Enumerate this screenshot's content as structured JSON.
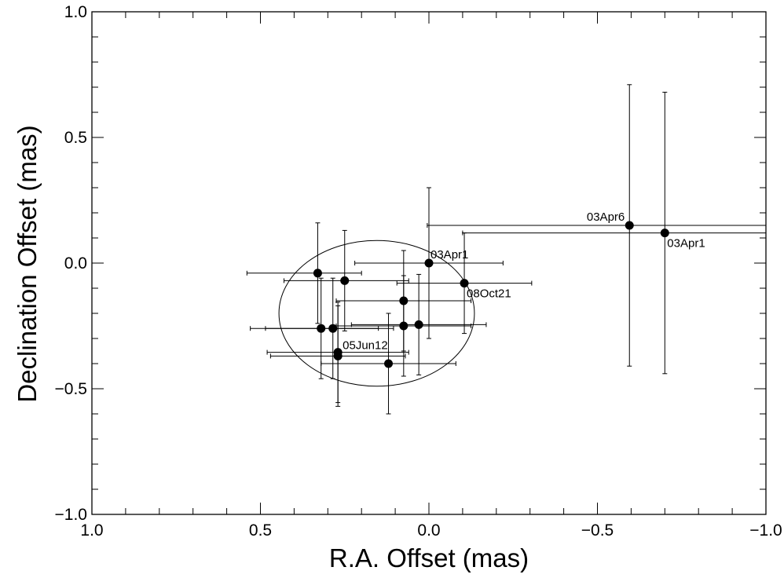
{
  "chart_data": {
    "type": "scatter",
    "title": "",
    "xlabel": "R.A. Offset (mas)",
    "ylabel": "Declination Offset (mas)",
    "xlim": [
      1.0,
      -1.0
    ],
    "ylim": [
      -1.0,
      1.0
    ],
    "x_reversed": true,
    "grid": false,
    "legend": "none",
    "x_tick_labels": [
      "1.0",
      "0.5",
      "0.0",
      "−0.5",
      "−1.0"
    ],
    "x_tick_values": [
      1.0,
      0.5,
      0.0,
      -0.5,
      -1.0
    ],
    "y_tick_labels": [
      "−1.0",
      "−0.5",
      "0.0",
      "0.5",
      "1.0"
    ],
    "y_tick_values": [
      -1.0,
      -0.5,
      0.0,
      0.5,
      1.0
    ],
    "points": [
      {
        "x": 0.33,
        "y": -0.04,
        "xerr_lo": 0.21,
        "xerr_hi": 0.13,
        "yerr": 0.2,
        "label": ""
      },
      {
        "x": 0.25,
        "y": -0.07,
        "xerr_lo": 0.18,
        "xerr_hi": 0.19,
        "yerr": 0.2,
        "label": ""
      },
      {
        "x": 0.32,
        "y": -0.26,
        "xerr_lo": 0.21,
        "xerr_hi": 0.17,
        "yerr": 0.2,
        "label": ""
      },
      {
        "x": 0.285,
        "y": -0.26,
        "xerr_lo": 0.2,
        "xerr_hi": 0.18,
        "yerr": 0.2,
        "label": ""
      },
      {
        "x": 0.27,
        "y": -0.355,
        "xerr_lo": 0.21,
        "xerr_hi": 0.21,
        "yerr": 0.2,
        "label": "05Jun12"
      },
      {
        "x": 0.27,
        "y": -0.37,
        "xerr_lo": 0.2,
        "xerr_hi": 0.2,
        "yerr": 0.2,
        "label": ""
      },
      {
        "x": 0.12,
        "y": -0.4,
        "xerr_lo": 0.2,
        "xerr_hi": 0.2,
        "yerr": 0.2,
        "label": ""
      },
      {
        "x": 0.075,
        "y": -0.15,
        "xerr_lo": 0.2,
        "xerr_hi": 0.2,
        "yerr": 0.2,
        "label": ""
      },
      {
        "x": 0.075,
        "y": -0.25,
        "xerr_lo": 0.2,
        "xerr_hi": 0.2,
        "yerr": 0.2,
        "label": ""
      },
      {
        "x": 0.03,
        "y": -0.245,
        "xerr_lo": 0.2,
        "xerr_hi": 0.2,
        "yerr": 0.2,
        "label": ""
      },
      {
        "x": 0.0,
        "y": 0.0,
        "xerr_lo": 0.22,
        "xerr_hi": 0.22,
        "yerr": 0.3,
        "label": "03Apr1"
      },
      {
        "x": -0.105,
        "y": -0.08,
        "xerr_lo": 0.2,
        "xerr_hi": 0.2,
        "yerr": 0.2,
        "label": "08Oct21"
      },
      {
        "x": -0.595,
        "y": 0.15,
        "xerr_lo": 0.6,
        "xerr_hi": 0.6,
        "yerr": 0.56,
        "label": "03Apr6"
      },
      {
        "x": -0.7,
        "y": 0.12,
        "xerr_lo": 0.6,
        "xerr_hi": 0.6,
        "yerr": 0.56,
        "label": "03Apr1"
      }
    ],
    "ellipse": {
      "cx": 0.155,
      "cy": -0.2,
      "rx": 0.29,
      "ry": 0.29
    }
  }
}
